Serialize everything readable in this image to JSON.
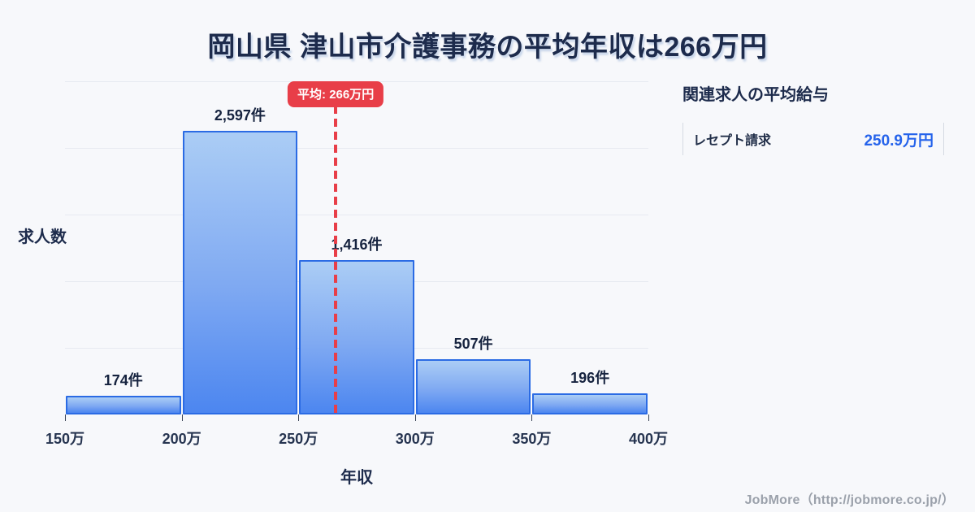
{
  "title": "岡山県 津山市介護事務の平均年収は266万円",
  "chart_data": {
    "type": "bar",
    "title": "岡山県 津山市介護事務の平均年収は266万円",
    "xlabel": "年収",
    "ylabel": "求人数",
    "categories": [
      "150万-200万",
      "200万-250万",
      "250万-300万",
      "300万-350万",
      "350万-400万"
    ],
    "values": [
      174,
      2597,
      1416,
      507,
      196
    ],
    "bar_labels": [
      "174件",
      "2,597件",
      "1,416件",
      "507件",
      "196件"
    ],
    "x_tick_labels": [
      "150万",
      "200万",
      "250万",
      "300万",
      "350万",
      "400万"
    ],
    "x_range": [
      150,
      400
    ],
    "ylim": [
      0,
      3050
    ],
    "grid": true,
    "legend": "none",
    "average": {
      "value": 266,
      "label": "平均: 266万円"
    },
    "colors": {
      "bar_fill_top": "#abcdf5",
      "bar_fill_bottom": "#4c86f0",
      "bar_border": "#2b6be4",
      "average_line": "#e83e48",
      "grid_line": "#e7eaf1",
      "title_text": "#1d2b4c",
      "value_text": "#2563eb",
      "background": "#f7f8fb"
    }
  },
  "side_panel": {
    "header": "関連求人の平均給与",
    "rows": [
      {
        "label": "レセプト請求",
        "value": "250.9万円"
      }
    ]
  },
  "footer": {
    "credit": "JobMore（http://jobmore.co.jp/）"
  }
}
